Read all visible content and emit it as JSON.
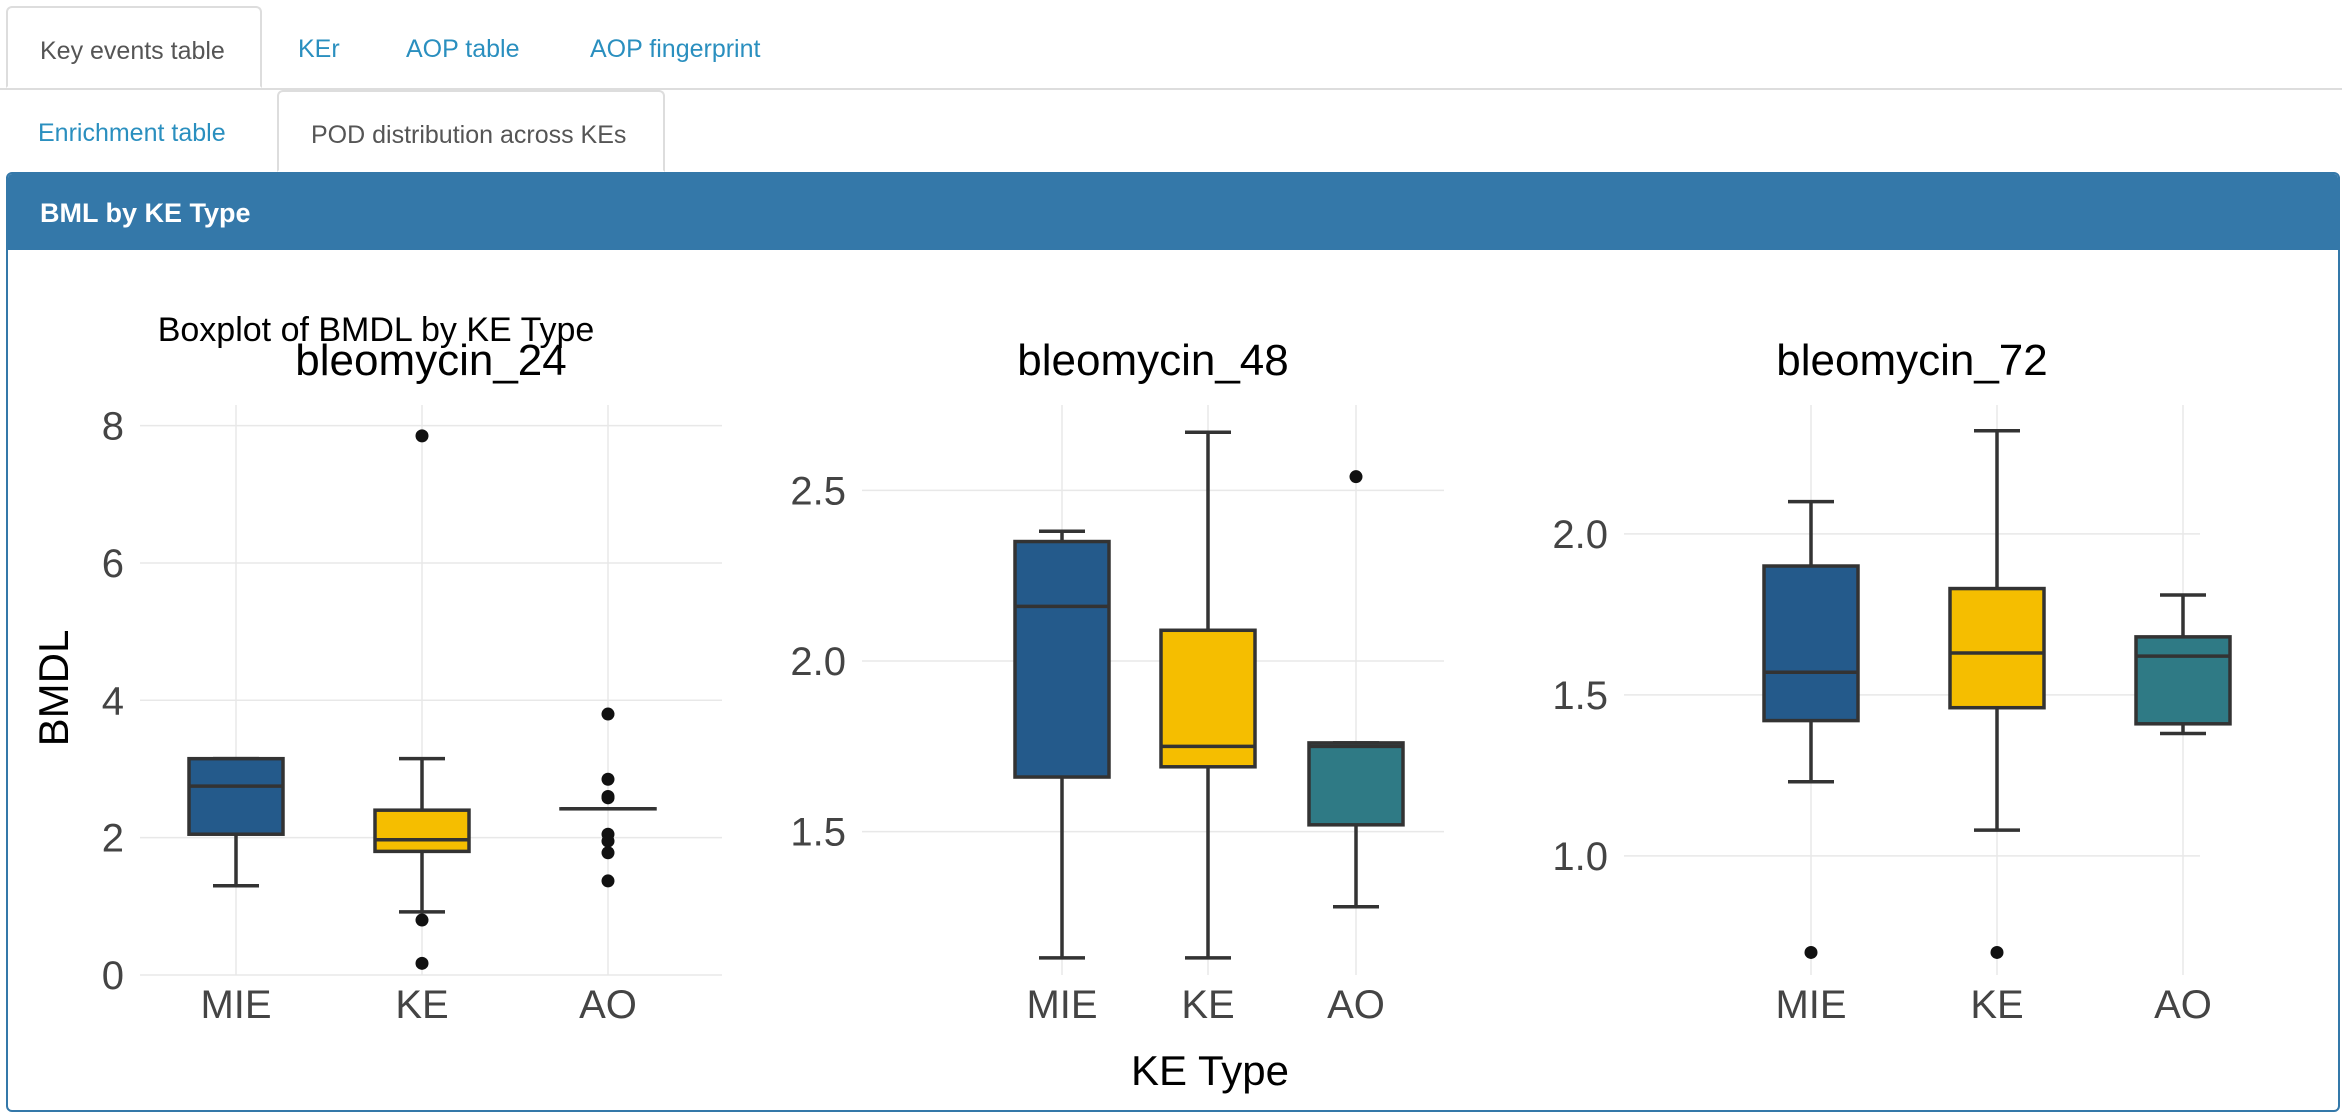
{
  "tabs_row1": [
    {
      "label": "Key events table",
      "active": true
    },
    {
      "label": "KEr",
      "active": false
    },
    {
      "label": "AOP table",
      "active": false
    },
    {
      "label": "AOP fingerprint",
      "active": false
    }
  ],
  "tabs_row2": [
    {
      "label": "Enrichment table",
      "active": false
    },
    {
      "label": "POD distribution across KEs",
      "active": true
    }
  ],
  "panel": {
    "title": "BML by KE Type"
  },
  "chart_data": {
    "type": "box",
    "title": "Boxplot of BMDL by KE Type",
    "xlabel": "KE Type",
    "ylabel": "BMDL",
    "categories": [
      "MIE",
      "KE",
      "AO"
    ],
    "colors": {
      "MIE": "#245a8b",
      "KE": "#f5be00",
      "AO": "#2f7a85"
    },
    "facets": [
      {
        "name": "bleomycin_24",
        "ylim": [
          0,
          8.3
        ],
        "yticks": [
          0,
          2,
          4,
          6,
          8
        ],
        "boxes": [
          {
            "category": "MIE",
            "whisker_low": 1.3,
            "q1": 2.05,
            "median": 2.75,
            "q3": 3.15,
            "whisker_high": 3.15,
            "outliers": []
          },
          {
            "category": "KE",
            "whisker_low": 0.92,
            "q1": 1.8,
            "median": 1.97,
            "q3": 2.4,
            "whisker_high": 3.15,
            "outliers": [
              7.85,
              0.8,
              0.17
            ]
          },
          {
            "category": "AO",
            "whisker_low": 2.42,
            "q1": 2.42,
            "median": 2.42,
            "q3": 2.42,
            "whisker_high": 2.42,
            "outliers": [
              3.8,
              2.85,
              2.6,
              2.58,
              2.05,
              1.95,
              1.78,
              1.37
            ]
          }
        ]
      },
      {
        "name": "bleomycin_48",
        "ylim": [
          1.08,
          2.75
        ],
        "yticks": [
          1.5,
          2.0,
          2.5
        ],
        "boxes": [
          {
            "category": "MIE",
            "whisker_low": 1.13,
            "q1": 1.66,
            "median": 2.16,
            "q3": 2.35,
            "whisker_high": 2.38,
            "outliers": []
          },
          {
            "category": "KE",
            "whisker_low": 1.13,
            "q1": 1.69,
            "median": 1.75,
            "q3": 2.09,
            "whisker_high": 2.67,
            "outliers": []
          },
          {
            "category": "AO",
            "whisker_low": 1.28,
            "q1": 1.52,
            "median": 1.75,
            "q3": 1.76,
            "whisker_high": 1.76,
            "outliers": [
              2.54
            ]
          }
        ]
      },
      {
        "name": "bleomycin_72",
        "ylim": [
          0.63,
          2.4
        ],
        "yticks": [
          1.0,
          1.5,
          2.0
        ],
        "boxes": [
          {
            "category": "MIE",
            "whisker_low": 1.23,
            "q1": 1.42,
            "median": 1.57,
            "q3": 1.9,
            "whisker_high": 2.1,
            "outliers": [
              0.7
            ]
          },
          {
            "category": "KE",
            "whisker_low": 1.08,
            "q1": 1.46,
            "median": 1.63,
            "q3": 1.83,
            "whisker_high": 2.32,
            "outliers": [
              0.7
            ]
          },
          {
            "category": "AO",
            "whisker_low": 1.38,
            "q1": 1.41,
            "median": 1.62,
            "q3": 1.68,
            "whisker_high": 1.81,
            "outliers": []
          }
        ]
      }
    ]
  }
}
